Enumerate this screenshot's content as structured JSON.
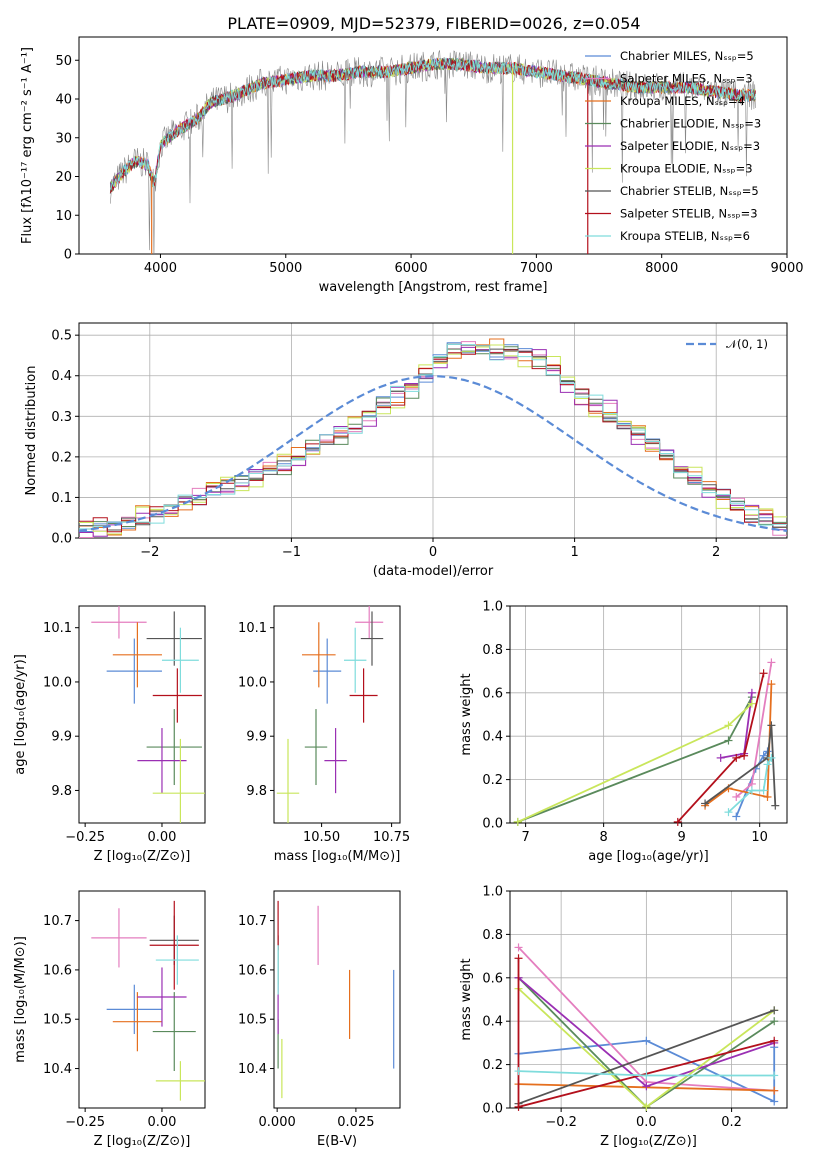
{
  "page_title": "PLATE=0909, MJD=52379, FIBERID=0026, z=0.054",
  "colors": {
    "Chabrier MILES": "#5b8bd6",
    "Salpeter MILES": "#e47ebf",
    "Kroupa MILES": "#e56f1e",
    "Chabrier ELODIE": "#5a8a5c",
    "Salpeter ELODIE": "#9a2fb3",
    "Kroupa ELODIE": "#c9e65b",
    "Chabrier STELIB": "#555555",
    "Salpeter STELIB": "#b3101c",
    "Kroupa STELIB": "#7fdcdc"
  },
  "chart_data": [
    {
      "id": "spectrum",
      "type": "line",
      "title": "PLATE=0909, MJD=52379, FIBERID=0026, z=0.054",
      "xlabel": "wavelength [Angstrom, rest frame]",
      "ylabel": "Flux [fλ10⁻¹⁷ erg cm⁻² s⁻¹ A⁻¹]",
      "xlim": [
        3350,
        9000
      ],
      "ylim": [
        0,
        56
      ],
      "xticks": [
        4000,
        5000,
        6000,
        7000,
        8000,
        9000
      ],
      "yticks": [
        0,
        10,
        20,
        30,
        40,
        50
      ],
      "legend_position": "upper right",
      "legend": [
        {
          "label": "Chabrier MILES, Nₛₛₚ=5",
          "color": "#5b8bd6"
        },
        {
          "label": "Salpeter MILES, Nₛₛₚ=3",
          "color": "#e47ebf"
        },
        {
          "label": "Kroupa MILES, Nₛₛₚ=4",
          "color": "#e56f1e"
        },
        {
          "label": "Chabrier ELODIE, Nₛₛₚ=3",
          "color": "#5a8a5c"
        },
        {
          "label": "Salpeter ELODIE, Nₛₛₚ=3",
          "color": "#9a2fb3"
        },
        {
          "label": "Kroupa ELODIE, Nₛₛₚ=3",
          "color": "#c9e65b"
        },
        {
          "label": "Chabrier STELIB, Nₛₛₚ=5",
          "color": "#555555"
        },
        {
          "label": "Salpeter STELIB, Nₛₛₚ=3",
          "color": "#b3101c"
        },
        {
          "label": "Kroupa STELIB, Nₛₛₚ=6",
          "color": "#7fdcdc"
        }
      ],
      "continuum": {
        "x": [
          3600,
          3700,
          3800,
          3900,
          3950,
          4000,
          4100,
          4200,
          4300,
          4400,
          4500,
          4600,
          4800,
          5000,
          5200,
          5400,
          5600,
          5800,
          6000,
          6200,
          6400,
          6600,
          6800,
          7000,
          7200,
          7400,
          7600,
          7800,
          8000,
          8200,
          8400,
          8600,
          8750
        ],
        "y": [
          17,
          21,
          24,
          23,
          18,
          28,
          31,
          33,
          35,
          39,
          40,
          41,
          44,
          45,
          46,
          46,
          47,
          47,
          48,
          49,
          49,
          48,
          48,
          47,
          46,
          45,
          44,
          43,
          43,
          43,
          42,
          41,
          41
        ]
      },
      "drops": [
        {
          "x": 3930,
          "y": 0,
          "color": "#e56f1e"
        },
        {
          "x": 6810,
          "y": 0,
          "color": "#c9e65b"
        },
        {
          "x": 7410,
          "y": 0,
          "color": "#b3101c"
        }
      ]
    },
    {
      "id": "residuals",
      "type": "line",
      "xlabel": "(data-model)/error",
      "ylabel": "Normed distribution",
      "xlim": [
        -2.5,
        2.5
      ],
      "ylim": [
        0,
        0.53
      ],
      "xticks": [
        -2,
        -1,
        0,
        1,
        2
      ],
      "yticks": [
        0.0,
        0.1,
        0.2,
        0.3,
        0.4,
        0.5
      ],
      "grid": true,
      "legend_position": "upper right",
      "normal_label": "𝒩(0, 1)",
      "normal_color": "#5b8bd6",
      "bin_width": 0.1,
      "hist_bins_start": -2.5,
      "hist_heights": [
        0.02,
        0.03,
        0.03,
        0.04,
        0.05,
        0.06,
        0.07,
        0.09,
        0.1,
        0.12,
        0.13,
        0.14,
        0.15,
        0.17,
        0.18,
        0.2,
        0.22,
        0.24,
        0.26,
        0.28,
        0.3,
        0.33,
        0.35,
        0.37,
        0.4,
        0.44,
        0.46,
        0.47,
        0.47,
        0.46,
        0.46,
        0.45,
        0.44,
        0.42,
        0.38,
        0.35,
        0.33,
        0.31,
        0.28,
        0.26,
        0.23,
        0.2,
        0.17,
        0.15,
        0.12,
        0.1,
        0.08,
        0.06,
        0.05,
        0.03
      ],
      "hist_offsets": [
        0.01,
        -0.01,
        0.02,
        -0.015,
        0.015,
        -0.02,
        0.005,
        0.01,
        -0.01
      ]
    },
    {
      "id": "age-vs-Z",
      "type": "scatter",
      "xlabel": "Z [log₁₀(Z/Z⊙)]",
      "ylabel": "age  [log₁₀(age/yr)]",
      "xlim": [
        -0.27,
        0.14
      ],
      "ylim": [
        9.74,
        10.14
      ],
      "xticks": [
        -0.25,
        0.0
      ],
      "xtick_labels": [
        "−0.25",
        "0.00"
      ],
      "yticks": [
        9.8,
        9.9,
        10.0,
        10.1
      ],
      "yerr_note": "error bars",
      "points": [
        {
          "name": "Chabrier MILES",
          "x": -0.09,
          "y": 10.02,
          "xerr": 0.09,
          "yerr": 0.06
        },
        {
          "name": "Salpeter MILES",
          "x": -0.14,
          "y": 10.11,
          "xerr": 0.09,
          "yerr": 0.03
        },
        {
          "name": "Kroupa MILES",
          "x": -0.08,
          "y": 10.05,
          "xerr": 0.08,
          "yerr": 0.06
        },
        {
          "name": "Chabrier ELODIE",
          "x": 0.04,
          "y": 9.88,
          "xerr": 0.09,
          "yerr": 0.07
        },
        {
          "name": "Salpeter ELODIE",
          "x": 0.0,
          "y": 9.855,
          "xerr": 0.08,
          "yerr": 0.06
        },
        {
          "name": "Kroupa ELODIE",
          "x": 0.06,
          "y": 9.795,
          "xerr": 0.09,
          "yerr": 0.1
        },
        {
          "name": "Chabrier STELIB",
          "x": 0.04,
          "y": 10.08,
          "xerr": 0.09,
          "yerr": 0.05
        },
        {
          "name": "Salpeter STELIB",
          "x": 0.05,
          "y": 9.975,
          "xerr": 0.08,
          "yerr": 0.05
        },
        {
          "name": "Kroupa STELIB",
          "x": 0.06,
          "y": 10.04,
          "xerr": 0.06,
          "yerr": 0.06
        }
      ]
    },
    {
      "id": "age-vs-mass",
      "type": "scatter",
      "xlabel": "mass [log₁₀(M/M⊙)]",
      "ylabel": "",
      "xlim": [
        10.33,
        10.78
      ],
      "ylim": [
        9.74,
        10.14
      ],
      "xticks": [
        10.5,
        10.75
      ],
      "yticks": [
        9.8,
        9.9,
        10.0,
        10.1
      ],
      "points": [
        {
          "name": "Chabrier MILES",
          "x": 10.52,
          "y": 10.02,
          "xerr": 0.05,
          "yerr": 0.06
        },
        {
          "name": "Salpeter MILES",
          "x": 10.67,
          "y": 10.11,
          "xerr": 0.05,
          "yerr": 0.03
        },
        {
          "name": "Kroupa MILES",
          "x": 10.49,
          "y": 10.05,
          "xerr": 0.06,
          "yerr": 0.06
        },
        {
          "name": "Chabrier ELODIE",
          "x": 10.48,
          "y": 9.88,
          "xerr": 0.04,
          "yerr": 0.07
        },
        {
          "name": "Salpeter ELODIE",
          "x": 10.55,
          "y": 9.855,
          "xerr": 0.04,
          "yerr": 0.06
        },
        {
          "name": "Kroupa ELODIE",
          "x": 10.38,
          "y": 9.795,
          "xerr": 0.04,
          "yerr": 0.1
        },
        {
          "name": "Chabrier STELIB",
          "x": 10.68,
          "y": 10.08,
          "xerr": 0.04,
          "yerr": 0.05
        },
        {
          "name": "Salpeter STELIB",
          "x": 10.65,
          "y": 9.975,
          "xerr": 0.05,
          "yerr": 0.05
        },
        {
          "name": "Kroupa STELIB",
          "x": 10.62,
          "y": 10.04,
          "xerr": 0.04,
          "yerr": 0.06
        }
      ]
    },
    {
      "id": "weight-vs-age",
      "type": "line",
      "xlabel": "age  [log₁₀(age/yr)]",
      "ylabel": "mass weight",
      "xlim": [
        6.8,
        10.35
      ],
      "ylim": [
        0,
        1.0
      ],
      "xticks": [
        7,
        8,
        9,
        10
      ],
      "yticks": [
        0.0,
        0.2,
        0.4,
        0.6,
        0.8,
        1.0
      ],
      "grid": true,
      "series": [
        {
          "name": "Chabrier MILES",
          "x": [
            9.7,
            9.95,
            10.05,
            10.1
          ],
          "y": [
            0.03,
            0.25,
            0.31,
            0.33
          ]
        },
        {
          "name": "Salpeter MILES",
          "x": [
            9.7,
            9.9,
            10.15
          ],
          "y": [
            0.12,
            0.18,
            0.74
          ]
        },
        {
          "name": "Kroupa MILES",
          "x": [
            9.3,
            9.6,
            10.1,
            10.15
          ],
          "y": [
            0.08,
            0.16,
            0.12,
            0.64
          ]
        },
        {
          "name": "Chabrier ELODIE",
          "x": [
            6.9,
            9.6,
            9.9
          ],
          "y": [
            0.005,
            0.38,
            0.58
          ]
        },
        {
          "name": "Salpeter ELODIE",
          "x": [
            9.5,
            9.8,
            9.9
          ],
          "y": [
            0.3,
            0.32,
            0.6
          ]
        },
        {
          "name": "Kroupa ELODIE",
          "x": [
            6.9,
            9.6,
            9.9
          ],
          "y": [
            0.005,
            0.45,
            0.55
          ]
        },
        {
          "name": "Chabrier STELIB",
          "x": [
            9.3,
            10.1,
            10.15,
            10.2
          ],
          "y": [
            0.09,
            0.3,
            0.45,
            0.08
          ]
        },
        {
          "name": "Salpeter STELIB",
          "x": [
            8.95,
            9.7,
            9.8,
            10.05
          ],
          "y": [
            0.005,
            0.3,
            0.31,
            0.69
          ]
        },
        {
          "name": "Kroupa STELIB",
          "x": [
            9.6,
            9.9,
            10.05,
            10.1,
            10.15
          ],
          "y": [
            0.05,
            0.15,
            0.15,
            0.27,
            0.3
          ]
        }
      ]
    },
    {
      "id": "mass-vs-Z",
      "type": "scatter",
      "xlabel": "Z [log₁₀(Z/Z⊙)]",
      "ylabel": "mass [log₁₀(M/M⊙)]",
      "xlim": [
        -0.27,
        0.14
      ],
      "ylim": [
        10.32,
        10.76
      ],
      "xticks": [
        -0.25,
        0.0
      ],
      "xtick_labels": [
        "−0.25",
        "0.00"
      ],
      "yticks": [
        10.4,
        10.5,
        10.6,
        10.7
      ],
      "points": [
        {
          "name": "Chabrier MILES",
          "x": -0.09,
          "y": 10.52,
          "xerr": 0.09,
          "yerr": 0.05
        },
        {
          "name": "Salpeter MILES",
          "x": -0.14,
          "y": 10.665,
          "xerr": 0.09,
          "yerr": 0.06
        },
        {
          "name": "Kroupa MILES",
          "x": -0.08,
          "y": 10.495,
          "xerr": 0.08,
          "yerr": 0.06
        },
        {
          "name": "Chabrier ELODIE",
          "x": 0.04,
          "y": 10.475,
          "xerr": 0.07,
          "yerr": 0.08
        },
        {
          "name": "Salpeter ELODIE",
          "x": 0.0,
          "y": 10.545,
          "xerr": 0.08,
          "yerr": 0.06
        },
        {
          "name": "Kroupa ELODIE",
          "x": 0.06,
          "y": 10.375,
          "xerr": 0.08,
          "yerr": 0.04
        },
        {
          "name": "Chabrier STELIB",
          "x": 0.04,
          "y": 10.66,
          "xerr": 0.08,
          "yerr": 0.05
        },
        {
          "name": "Salpeter STELIB",
          "x": 0.04,
          "y": 10.65,
          "xerr": 0.08,
          "yerr": 0.09
        },
        {
          "name": "Kroupa STELIB",
          "x": 0.05,
          "y": 10.62,
          "xerr": 0.07,
          "yerr": 0.05
        }
      ]
    },
    {
      "id": "mass-vs-EBV",
      "type": "scatter",
      "xlabel": "E(B-V)",
      "ylabel": "",
      "xlim": [
        -0.001,
        0.039
      ],
      "ylim": [
        10.32,
        10.76
      ],
      "xticks": [
        0.0,
        0.025
      ],
      "xtick_labels": [
        "0.000",
        "0.025"
      ],
      "yticks": [
        10.4,
        10.5,
        10.6,
        10.7
      ],
      "points": [
        {
          "name": "Chabrier MILES",
          "x": 0.037,
          "y": 10.5,
          "xerr": 0.0,
          "yerr": 0.1
        },
        {
          "name": "Salpeter MILES",
          "x": 0.013,
          "y": 10.67,
          "xerr": 0.0,
          "yerr": 0.06
        },
        {
          "name": "Kroupa MILES",
          "x": 0.023,
          "y": 10.53,
          "xerr": 0.0,
          "yerr": 0.07
        },
        {
          "name": "Chabrier ELODIE",
          "x": 0.0003,
          "y": 10.45,
          "xerr": 0.0,
          "yerr": 0.05
        },
        {
          "name": "Salpeter ELODIE",
          "x": 0.0003,
          "y": 10.52,
          "xerr": 0.0,
          "yerr": 0.05
        },
        {
          "name": "Kroupa ELODIE",
          "x": 0.0015,
          "y": 10.4,
          "xerr": 0.0,
          "yerr": 0.06
        },
        {
          "name": "Chabrier STELIB",
          "x": 0.0003,
          "y": 10.62,
          "xerr": 0.0,
          "yerr": 0.05
        },
        {
          "name": "Salpeter STELIB",
          "x": 0.0003,
          "y": 10.69,
          "xerr": 0.0,
          "yerr": 0.05
        },
        {
          "name": "Kroupa STELIB",
          "x": 0.0003,
          "y": 10.6,
          "xerr": 0.0,
          "yerr": 0.05
        }
      ]
    },
    {
      "id": "weight-vs-Z",
      "type": "line",
      "xlabel": "Z [log₁₀(Z/Z⊙)]",
      "ylabel": "mass weight",
      "xlim": [
        -0.32,
        0.33
      ],
      "ylim": [
        0,
        1.0
      ],
      "xticks": [
        -0.2,
        0.0,
        0.2
      ],
      "xtick_labels": [
        "−0.2",
        "0.0",
        "0.2"
      ],
      "yticks": [
        0.0,
        0.2,
        0.4,
        0.6,
        0.8,
        1.0
      ],
      "grid": true,
      "series": [
        {
          "name": "Chabrier MILES",
          "x": [
            -0.3,
            0.0,
            0.3,
            0.3
          ],
          "y": [
            0.25,
            0.31,
            0.03,
            0.28
          ]
        },
        {
          "name": "Salpeter MILES",
          "x": [
            -0.3,
            0.0,
            0.3
          ],
          "y": [
            0.74,
            0.12,
            0.08
          ]
        },
        {
          "name": "Kroupa MILES",
          "x": [
            -0.3,
            0.3
          ],
          "y": [
            0.11,
            0.08
          ]
        },
        {
          "name": "Chabrier ELODIE",
          "x": [
            -0.3,
            0.0,
            0.3
          ],
          "y": [
            0.6,
            0.005,
            0.4
          ]
        },
        {
          "name": "Salpeter ELODIE",
          "x": [
            -0.3,
            0.0,
            0.3
          ],
          "y": [
            0.6,
            0.1,
            0.3
          ]
        },
        {
          "name": "Kroupa ELODIE",
          "x": [
            -0.3,
            0.0,
            0.3
          ],
          "y": [
            0.55,
            0.005,
            0.45
          ]
        },
        {
          "name": "Chabrier STELIB",
          "x": [
            -0.3,
            0.3
          ],
          "y": [
            0.02,
            0.45
          ]
        },
        {
          "name": "Salpeter STELIB",
          "x": [
            -0.3,
            -0.3,
            0.3
          ],
          "y": [
            0.69,
            0.005,
            0.31
          ]
        },
        {
          "name": "Kroupa STELIB",
          "x": [
            -0.3,
            0.0,
            0.3
          ],
          "y": [
            0.17,
            0.15,
            0.15
          ]
        }
      ]
    }
  ]
}
